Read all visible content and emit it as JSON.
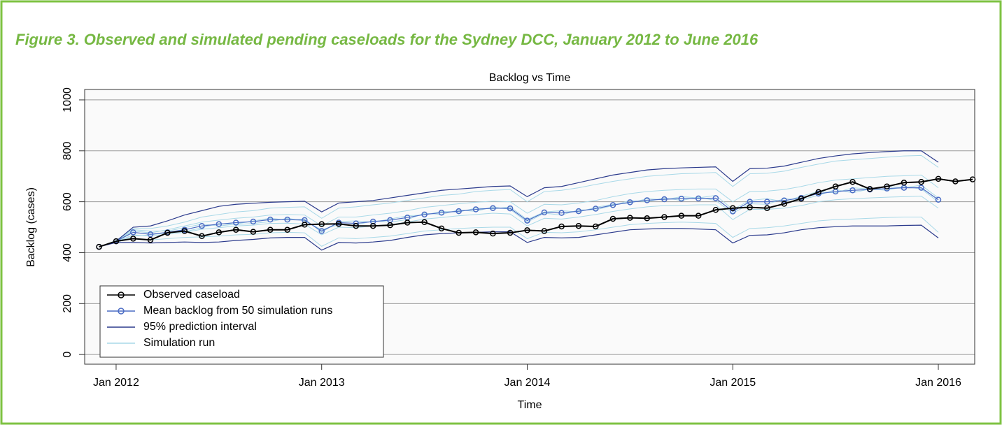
{
  "figure_title": "Figure 3. Observed and simulated pending caseloads for the Sydney DCC, January 2012 to June 2016",
  "chart_data": {
    "type": "line",
    "title": "Backlog vs Time",
    "x_label": "Time",
    "y_label": "Backlog (cases)",
    "xlim": [
      2011.847,
      2016.177
    ],
    "ylim": [
      -38,
      1041
    ],
    "xticks": [
      {
        "value": 2012,
        "label": "Jan 2012"
      },
      {
        "value": 2013,
        "label": "Jan 2013"
      },
      {
        "value": 2014,
        "label": "Jan 2014"
      },
      {
        "value": 2015,
        "label": "Jan 2015"
      },
      {
        "value": 2016,
        "label": "Jan 2016"
      }
    ],
    "yticks": [
      0,
      200,
      400,
      600,
      800,
      1000
    ],
    "grid": true,
    "legend": "bottomleft",
    "x": [
      2011.917,
      2012,
      2012.083,
      2012.167,
      2012.25,
      2012.333,
      2012.417,
      2012.5,
      2012.583,
      2012.667,
      2012.75,
      2012.833,
      2012.917,
      2013,
      2013.083,
      2013.167,
      2013.25,
      2013.333,
      2013.417,
      2013.5,
      2013.583,
      2013.667,
      2013.75,
      2013.833,
      2013.917,
      2014,
      2014.083,
      2014.167,
      2014.25,
      2014.333,
      2014.417,
      2014.5,
      2014.583,
      2014.667,
      2014.75,
      2014.833,
      2014.917,
      2015,
      2015.083,
      2015.167,
      2015.25,
      2015.333,
      2015.417,
      2015.5,
      2015.583,
      2015.667,
      2015.75,
      2015.833,
      2015.917,
      2016,
      2016.083,
      2016.167
    ],
    "runs": {
      "name": "Simulation run",
      "color": "#a9d9e8",
      "values": [
        [
          423,
          448,
          495,
          495,
          505,
          520,
          540,
          550,
          560,
          565,
          575,
          578,
          580,
          535,
          575,
          580,
          588,
          595,
          605,
          615,
          625,
          630,
          640,
          645,
          648,
          600,
          640,
          645,
          655,
          668,
          680,
          690,
          700,
          705,
          710,
          712,
          715,
          660,
          710,
          712,
          720,
          735,
          748,
          760,
          765,
          770,
          775,
          780,
          782,
          735,
          null,
          null
        ],
        [
          423,
          442,
          455,
          450,
          455,
          460,
          462,
          465,
          470,
          472,
          478,
          480,
          478,
          425,
          458,
          455,
          460,
          465,
          475,
          485,
          490,
          495,
          498,
          500,
          500,
          455,
          480,
          478,
          482,
          490,
          500,
          510,
          515,
          518,
          520,
          518,
          515,
          460,
          495,
          498,
          505,
          515,
          525,
          530,
          532,
          535,
          538,
          540,
          540,
          480,
          null,
          null
        ],
        [
          423,
          446,
          485,
          478,
          490,
          505,
          520,
          528,
          535,
          540,
          548,
          550,
          548,
          505,
          540,
          540,
          548,
          555,
          565,
          578,
          585,
          592,
          598,
          602,
          600,
          555,
          590,
          588,
          595,
          605,
          620,
          632,
          640,
          645,
          648,
          650,
          650,
          600,
          640,
          642,
          648,
          660,
          675,
          685,
          690,
          695,
          700,
          702,
          705,
          655,
          null,
          null
        ],
        [
          423,
          444,
          470,
          465,
          472,
          480,
          492,
          498,
          505,
          508,
          515,
          516,
          512,
          470,
          500,
          498,
          505,
          510,
          520,
          532,
          538,
          545,
          550,
          555,
          552,
          505,
          535,
          532,
          540,
          550,
          562,
          572,
          580,
          585,
          586,
          588,
          588,
          530,
          570,
          570,
          575,
          585,
          600,
          608,
          612,
          615,
          618,
          620,
          622,
          575,
          null,
          null
        ],
        [
          423,
          447,
          490,
          485,
          485,
          498,
          512,
          505,
          512,
          525,
          535,
          528,
          532,
          480,
          522,
          525,
          520,
          532,
          545,
          548,
          562,
          560,
          575,
          572,
          580,
          530,
          560,
          565,
          560,
          578,
          590,
          595,
          612,
          608,
          620,
          615,
          625,
          570,
          605,
          612,
          600,
          622,
          640,
          635,
          655,
          650,
          660,
          655,
          665,
          615,
          null,
          null
        ],
        [
          423,
          443,
          465,
          470,
          478,
          482,
          498,
          515,
          510,
          515,
          522,
          535,
          525,
          490,
          510,
          508,
          525,
          520,
          530,
          555,
          550,
          568,
          562,
          580,
          570,
          520,
          555,
          548,
          568,
          568,
          585,
          605,
          600,
          615,
          605,
          618,
          605,
          555,
          592,
          590,
          612,
          608,
          625,
          648,
          635,
          650,
          645,
          660,
          650,
          600,
          null,
          null
        ]
      ]
    },
    "interval": {
      "name": "95% prediction interval",
      "color": "#2b3a8c",
      "upper": [
        423,
        445,
        500,
        505,
        525,
        548,
        565,
        582,
        590,
        594,
        598,
        600,
        602,
        560,
        595,
        600,
        605,
        615,
        625,
        635,
        645,
        650,
        655,
        660,
        662,
        620,
        655,
        660,
        675,
        690,
        705,
        715,
        725,
        730,
        733,
        735,
        737,
        680,
        730,
        732,
        740,
        755,
        770,
        780,
        788,
        793,
        797,
        800,
        800,
        755,
        null,
        null
      ],
      "lower": [
        423,
        440,
        440,
        438,
        440,
        442,
        440,
        442,
        448,
        452,
        458,
        460,
        460,
        410,
        440,
        438,
        442,
        448,
        460,
        470,
        475,
        478,
        480,
        482,
        482,
        440,
        460,
        458,
        460,
        470,
        480,
        490,
        493,
        495,
        495,
        493,
        490,
        438,
        468,
        470,
        478,
        490,
        498,
        502,
        505,
        505,
        505,
        507,
        508,
        458,
        null,
        null
      ]
    },
    "series": [
      {
        "name": "Observed caseload",
        "color": "#000000",
        "values": [
          423,
          445,
          455,
          450,
          478,
          485,
          465,
          480,
          490,
          482,
          490,
          490,
          510,
          512,
          513,
          505,
          505,
          508,
          518,
          520,
          495,
          478,
          480,
          475,
          478,
          488,
          485,
          503,
          505,
          503,
          533,
          537,
          535,
          540,
          545,
          545,
          568,
          575,
          578,
          575,
          592,
          612,
          638,
          660,
          678,
          650,
          660,
          675,
          678,
          690,
          680,
          688
        ]
      },
      {
        "name": "Mean backlog from 50 simulation runs",
        "color": "#4a6cc4",
        "values": [
          423,
          445,
          480,
          472,
          480,
          490,
          505,
          512,
          518,
          522,
          530,
          530,
          528,
          485,
          518,
          515,
          522,
          528,
          538,
          550,
          557,
          563,
          570,
          575,
          574,
          526,
          558,
          556,
          563,
          573,
          587,
          598,
          606,
          610,
          612,
          613,
          614,
          562,
          600,
          600,
          605,
          615,
          632,
          640,
          645,
          648,
          652,
          655,
          655,
          608,
          null,
          null
        ]
      }
    ]
  }
}
